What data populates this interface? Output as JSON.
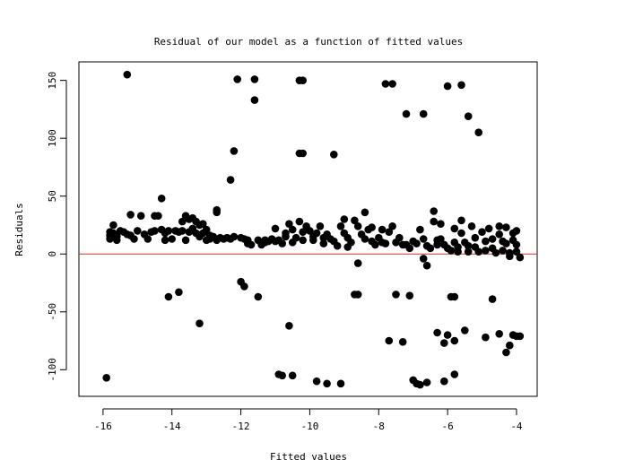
{
  "chart_data": {
    "type": "scatter",
    "title": "Residual of our model as a function of fitted values",
    "xlabel": "Fitted values",
    "ylabel": "Residuals",
    "xlim": [
      -16.7,
      -3.4
    ],
    "ylim": [
      -123,
      166
    ],
    "x_ticks": [
      -16,
      -14,
      -12,
      -10,
      -8,
      -6,
      -4
    ],
    "y_ticks": [
      -100,
      -50,
      0,
      50,
      100,
      150
    ],
    "x_tick_labels": [
      "-16",
      "-14",
      "-12",
      "-10",
      "-8",
      "-6",
      "-4"
    ],
    "y_tick_labels": [
      "-100",
      "-50",
      "0",
      "50",
      "100",
      "150"
    ],
    "reference_line": {
      "y": 0,
      "color": "#cc3333"
    },
    "point_color": "#000000",
    "grid": false,
    "points": [
      [
        -15.8,
        19
      ],
      [
        -15.8,
        16
      ],
      [
        -15.8,
        13
      ],
      [
        -15.7,
        25
      ],
      [
        -15.7,
        18
      ],
      [
        -15.6,
        15
      ],
      [
        -15.6,
        12
      ],
      [
        -15.5,
        20
      ],
      [
        -15.4,
        19
      ],
      [
        -15.3,
        17
      ],
      [
        -15.2,
        34
      ],
      [
        -15.2,
        16
      ],
      [
        -15.1,
        13
      ],
      [
        -15.0,
        20
      ],
      [
        -14.9,
        33
      ],
      [
        -14.8,
        17
      ],
      [
        -14.7,
        13
      ],
      [
        -14.6,
        19
      ],
      [
        -14.5,
        33
      ],
      [
        -14.5,
        20
      ],
      [
        -14.4,
        33
      ],
      [
        -14.3,
        48
      ],
      [
        -14.3,
        21
      ],
      [
        -14.2,
        18
      ],
      [
        -14.2,
        12
      ],
      [
        -14.1,
        20
      ],
      [
        -14.0,
        13
      ],
      [
        -13.9,
        20
      ],
      [
        -13.8,
        19
      ],
      [
        -13.7,
        28
      ],
      [
        -13.7,
        20
      ],
      [
        -13.6,
        33
      ],
      [
        -13.6,
        12
      ],
      [
        -13.5,
        30
      ],
      [
        -13.5,
        19
      ],
      [
        -13.4,
        31
      ],
      [
        -13.4,
        22
      ],
      [
        -13.3,
        28
      ],
      [
        -13.3,
        18
      ],
      [
        -13.2,
        15
      ],
      [
        -13.2,
        25
      ],
      [
        -13.1,
        26
      ],
      [
        -13.1,
        18
      ],
      [
        -13.0,
        21
      ],
      [
        -13.0,
        12
      ],
      [
        -12.9,
        16
      ],
      [
        -12.9,
        13
      ],
      [
        -12.8,
        15
      ],
      [
        -12.7,
        38
      ],
      [
        -12.7,
        36
      ],
      [
        -12.7,
        12
      ],
      [
        -12.6,
        14
      ],
      [
        -12.5,
        13
      ],
      [
        -12.4,
        14
      ],
      [
        -12.3,
        13
      ],
      [
        -12.2,
        15
      ],
      [
        -12.0,
        14
      ],
      [
        -11.9,
        13
      ],
      [
        -11.8,
        9
      ],
      [
        -11.8,
        12
      ],
      [
        -11.7,
        8
      ],
      [
        -11.5,
        12
      ],
      [
        -11.4,
        8
      ],
      [
        -11.3,
        12
      ],
      [
        -11.3,
        10
      ],
      [
        -11.2,
        11
      ],
      [
        -11.1,
        13
      ],
      [
        -11.0,
        22
      ],
      [
        -11.0,
        11
      ],
      [
        -10.9,
        12
      ],
      [
        -10.8,
        9
      ],
      [
        -10.7,
        15
      ],
      [
        -10.6,
        26
      ],
      [
        -10.5,
        21
      ],
      [
        -10.5,
        10
      ],
      [
        -10.4,
        14
      ],
      [
        -10.3,
        28
      ],
      [
        -10.2,
        19
      ],
      [
        -10.2,
        12
      ],
      [
        -10.1,
        24
      ],
      [
        -10.0,
        20
      ],
      [
        -9.9,
        15
      ],
      [
        -9.9,
        12
      ],
      [
        -9.8,
        18
      ],
      [
        -9.7,
        24
      ],
      [
        -9.6,
        14
      ],
      [
        -9.5,
        17
      ],
      [
        -9.4,
        13
      ],
      [
        -9.3,
        11
      ],
      [
        -9.2,
        7
      ],
      [
        -9.1,
        24
      ],
      [
        -9.0,
        30
      ],
      [
        -9.0,
        18
      ],
      [
        -8.9,
        14
      ],
      [
        -8.8,
        10
      ],
      [
        -8.7,
        29
      ],
      [
        -8.6,
        24
      ],
      [
        -8.5,
        17
      ],
      [
        -8.4,
        13
      ],
      [
        -8.3,
        21
      ],
      [
        -8.2,
        11
      ],
      [
        -8.1,
        8
      ],
      [
        -8.0,
        14
      ],
      [
        -7.9,
        21
      ],
      [
        -7.8,
        9
      ],
      [
        -7.7,
        19
      ],
      [
        -7.6,
        24
      ],
      [
        -7.5,
        10
      ],
      [
        -7.4,
        14
      ],
      [
        -7.3,
        8
      ],
      [
        -7.2,
        8
      ],
      [
        -7.1,
        5
      ],
      [
        -7.0,
        11
      ],
      [
        -6.9,
        9
      ],
      [
        -6.8,
        21
      ],
      [
        -6.7,
        13
      ],
      [
        -6.6,
        7
      ],
      [
        -6.5,
        5
      ],
      [
        -6.4,
        37
      ],
      [
        -6.4,
        28
      ],
      [
        -6.3,
        12
      ],
      [
        -6.3,
        8
      ],
      [
        -6.2,
        13
      ],
      [
        -6.1,
        8
      ],
      [
        -6.0,
        5
      ],
      [
        -5.9,
        3
      ],
      [
        -5.8,
        22
      ],
      [
        -5.8,
        10
      ],
      [
        -5.7,
        6
      ],
      [
        -5.7,
        2
      ],
      [
        -5.6,
        29
      ],
      [
        -5.6,
        18
      ],
      [
        -5.5,
        10
      ],
      [
        -5.4,
        7
      ],
      [
        -5.4,
        2
      ],
      [
        -5.3,
        24
      ],
      [
        -5.2,
        14
      ],
      [
        -5.2,
        6
      ],
      [
        -5.1,
        2
      ],
      [
        -5.0,
        19
      ],
      [
        -4.9,
        11
      ],
      [
        -4.9,
        3
      ],
      [
        -4.8,
        22
      ],
      [
        -4.7,
        13
      ],
      [
        -4.7,
        5
      ],
      [
        -4.6,
        1
      ],
      [
        -4.5,
        24
      ],
      [
        -4.5,
        17
      ],
      [
        -4.4,
        11
      ],
      [
        -4.4,
        3
      ],
      [
        -4.3,
        23
      ],
      [
        -4.3,
        9
      ],
      [
        -4.2,
        1
      ],
      [
        -4.2,
        -2
      ],
      [
        -4.1,
        18
      ],
      [
        -4.1,
        12
      ],
      [
        -4.0,
        20
      ],
      [
        -4.0,
        8
      ],
      [
        -4.0,
        2
      ],
      [
        -3.9,
        -3
      ],
      [
        -15.9,
        -107
      ],
      [
        -15.3,
        155
      ],
      [
        -14.1,
        -37
      ],
      [
        -13.8,
        -33
      ],
      [
        -13.2,
        -60
      ],
      [
        -12.3,
        64
      ],
      [
        -12.2,
        89
      ],
      [
        -12.1,
        151
      ],
      [
        -12.0,
        -24
      ],
      [
        -11.9,
        -28
      ],
      [
        -11.6,
        151
      ],
      [
        -11.6,
        133
      ],
      [
        -11.5,
        -37
      ],
      [
        -10.9,
        -104
      ],
      [
        -10.8,
        -105
      ],
      [
        -10.5,
        -105
      ],
      [
        -10.6,
        -62
      ],
      [
        -10.3,
        150
      ],
      [
        -10.2,
        150
      ],
      [
        -10.3,
        87
      ],
      [
        -10.2,
        87
      ],
      [
        -9.8,
        -110
      ],
      [
        -9.5,
        -112
      ],
      [
        -9.3,
        86
      ],
      [
        -9.1,
        -112
      ],
      [
        -8.7,
        -35
      ],
      [
        -8.6,
        -35
      ],
      [
        -8.6,
        -8
      ],
      [
        -8.4,
        36
      ],
      [
        -8.2,
        23
      ],
      [
        -7.8,
        147
      ],
      [
        -7.6,
        147
      ],
      [
        -7.7,
        -75
      ],
      [
        -7.5,
        -35
      ],
      [
        -7.3,
        -76
      ],
      [
        -7.2,
        121
      ],
      [
        -7.1,
        -36
      ],
      [
        -7.0,
        -109
      ],
      [
        -6.9,
        -112
      ],
      [
        -6.8,
        -113
      ],
      [
        -6.7,
        -4
      ],
      [
        -6.6,
        -10
      ],
      [
        -6.7,
        121
      ],
      [
        -6.6,
        -111
      ],
      [
        -6.3,
        -68
      ],
      [
        -6.1,
        -77
      ],
      [
        -6.0,
        145
      ],
      [
        -6.1,
        -110
      ],
      [
        -6.0,
        -70
      ],
      [
        -5.9,
        -37
      ],
      [
        -5.8,
        -37
      ],
      [
        -5.8,
        -75
      ],
      [
        -5.8,
        -104
      ],
      [
        -5.6,
        146
      ],
      [
        -5.5,
        -66
      ],
      [
        -5.4,
        119
      ],
      [
        -5.1,
        105
      ],
      [
        -4.9,
        -72
      ],
      [
        -4.7,
        -39
      ],
      [
        -4.5,
        -69
      ],
      [
        -4.3,
        -85
      ],
      [
        -4.2,
        -79
      ],
      [
        -4.1,
        -70
      ],
      [
        -4.0,
        -71
      ],
      [
        -3.9,
        -71
      ],
      [
        -6.2,
        26
      ],
      [
        -7.9,
        10
      ],
      [
        -8.9,
        6
      ],
      [
        -9.6,
        9
      ],
      [
        -10.7,
        18
      ]
    ]
  }
}
